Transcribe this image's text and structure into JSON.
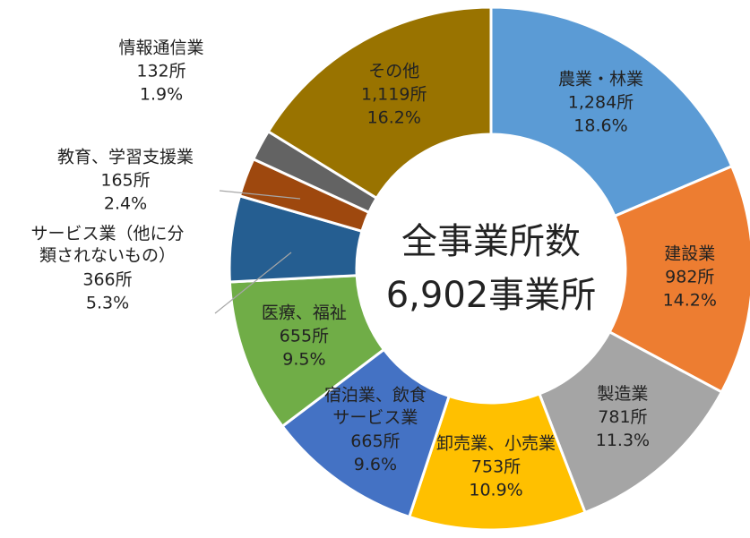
{
  "chart_data": {
    "type": "donut",
    "center_label": [
      "全事業所数",
      "6,902事業所"
    ],
    "categories": [
      "農業・林業",
      "建設業",
      "製造業",
      "卸売業、小売業",
      "宿泊業、飲食\nサービス業",
      "医療、福祉",
      "サービス業（他に分\n類されないもの）",
      "教育、学習支援業",
      "情報通信業",
      "その他"
    ],
    "values": [
      1284,
      982,
      781,
      753,
      665,
      655,
      366,
      165,
      132,
      1119
    ],
    "value_labels": [
      "1,284所",
      "982所",
      "781所",
      "753所",
      "665所",
      "655所",
      "366所",
      "165所",
      "132所",
      "1,119所"
    ],
    "percent_labels": [
      "18.6%",
      "14.2%",
      "11.3%",
      "10.9%",
      "9.6%",
      "9.5%",
      "5.3%",
      "2.4%",
      "1.9%",
      "16.2%"
    ],
    "colors": [
      "#5b9bd5",
      "#ed7d31",
      "#a5a5a5",
      "#ffc000",
      "#4472c4",
      "#70ad47",
      "#255e91",
      "#9e480e",
      "#636363",
      "#997300"
    ]
  }
}
